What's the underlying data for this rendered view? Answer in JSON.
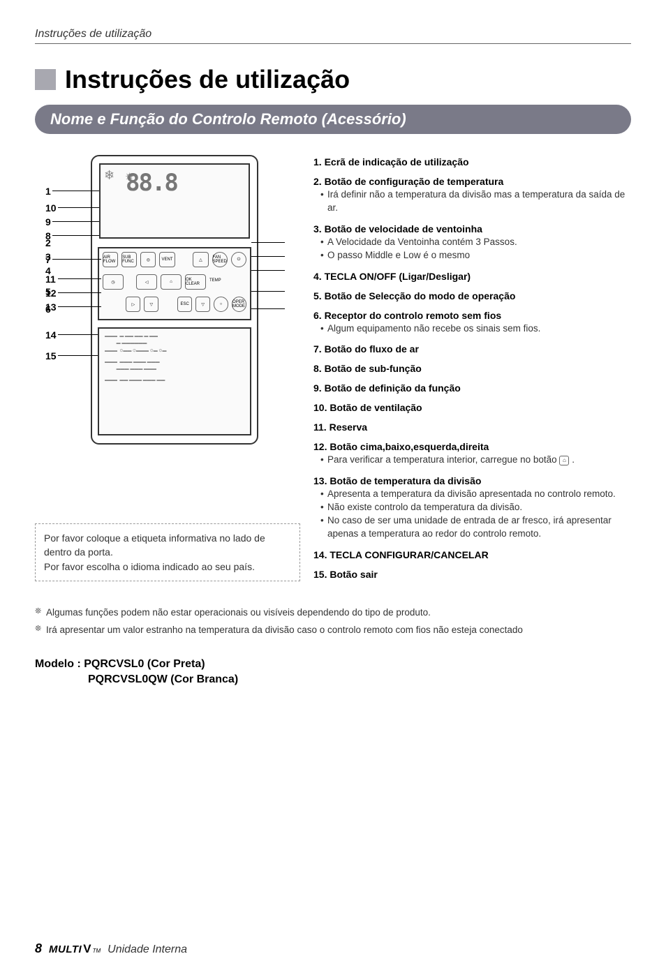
{
  "header": {
    "italic_title": "Instruções de utilização"
  },
  "main_title": "Instruções de utilização",
  "subtitle": "Nome e Função do Controlo Remoto (Acessório)",
  "diagram": {
    "temp_digits": "88.8",
    "callout_numbers": {
      "n1": "1",
      "n2": "2",
      "n3": "3",
      "n4": "4",
      "n5": "5",
      "n6": "6",
      "n7": "7",
      "n8": "8",
      "n9": "9",
      "n10": "10",
      "n11": "11",
      "n12": "12",
      "n13": "13",
      "n14": "14",
      "n15": "15"
    },
    "btn_labels": {
      "air_flow": "AIR FLOW",
      "sub_func": "SUB FUNC",
      "vent": "VENT",
      "fan_speed": "FAN SPEED",
      "ok_clear": "OK CLEAR",
      "temp": "TEMP",
      "oper_mode": "OPER MODE",
      "esc": "ESC"
    }
  },
  "dashed_box": {
    "line1": "Por favor coloque a etiqueta informativa no lado de dentro da porta.",
    "line2": "Por favor escolha o idioma indicado ao seu país."
  },
  "specs": [
    {
      "num": "1.",
      "title": "Ecrã de indicação de utilização",
      "bullets": []
    },
    {
      "num": "2.",
      "title": "Botão de configuração de temperatura",
      "bullets": [
        "Irá definir não a temperatura da divisão mas a temperatura da saída de ar."
      ]
    },
    {
      "num": "3.",
      "title": "Botão de velocidade de ventoinha",
      "bullets": [
        "A Velocidade da Ventoinha contém 3 Passos.",
        "O passo Middle e Low é o mesmo"
      ]
    },
    {
      "num": "4.",
      "title": "TECLA ON/OFF (Ligar/Desligar)",
      "bullets": []
    },
    {
      "num": "5.",
      "title": "Botão de Selecção do modo de operação",
      "bullets": []
    },
    {
      "num": "6.",
      "title": "Receptor do controlo remoto sem fios",
      "bullets": [
        "Algum equipamento não recebe os sinais sem fios."
      ]
    },
    {
      "num": "7.",
      "title": "Botão do fluxo de ar",
      "bullets": []
    },
    {
      "num": "8.",
      "title": "Botão de sub-função",
      "bullets": []
    },
    {
      "num": "9.",
      "title": "Botão de definição da função",
      "bullets": []
    },
    {
      "num": "10.",
      "title": "Botão de ventilação",
      "bullets": []
    },
    {
      "num": "11.",
      "title": "Reserva",
      "bullets": []
    },
    {
      "num": "12.",
      "title": "Botão cima,baixo,esquerda,direita",
      "bullets": [
        "Para verificar a temperatura interior, carregue no botão __ICON__ ."
      ]
    },
    {
      "num": "13.",
      "title": "Botão de temperatura da divisão",
      "bullets": [
        "Apresenta a temperatura da divisão apresentada no controlo remoto.",
        "Não existe controlo da temperatura da divisão.",
        "No caso de ser uma unidade de entrada de ar fresco, irá apresentar apenas a temperatura ao redor do controlo remoto."
      ]
    },
    {
      "num": "14.",
      "title": "TECLA CONFIGURAR/CANCELAR",
      "bullets": []
    },
    {
      "num": "15.",
      "title": "Botão sair",
      "bullets": []
    }
  ],
  "footer_notes": [
    "Algumas funções podem não estar operacionais ou visíveis dependendo do tipo de produto.",
    "Irá apresentar um valor estranho na temperatura da divisão caso o controlo remoto com fios não esteja conectado"
  ],
  "model": {
    "line1": "Modelo : PQRCVSL0 (Cor Preta)",
    "line2": "PQRCVSL0QW (Cor Branca)"
  },
  "page_footer": {
    "page": "8",
    "brand": "MULTI",
    "v": "V",
    "unit": "Unidade Interna"
  },
  "colors": {
    "title_square": "#a8a8b0",
    "subtitle_bg": "#7a7a88",
    "text": "#333333",
    "border": "#333333"
  }
}
